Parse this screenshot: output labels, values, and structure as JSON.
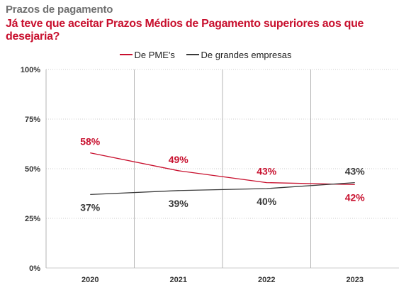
{
  "kicker": "Prazos de pagamento",
  "title": "Já teve que aceitar Prazos Médios de Pagamento superiores aos que desejaria?",
  "colors": {
    "title": "#c8102e",
    "pme": "#c8102e",
    "grandes": "#3a3a3a",
    "grid": "#cccccc",
    "axis_text": "#333333"
  },
  "chart_data": {
    "type": "line",
    "x": [
      "2020",
      "2021",
      "2022",
      "2023"
    ],
    "ylim": [
      0,
      100
    ],
    "y_ticks": [
      "0%",
      "25%",
      "50%",
      "75%",
      "100%"
    ],
    "y_tick_values": [
      0,
      25,
      50,
      75,
      100
    ],
    "grid": true,
    "legend_position": "top-center",
    "series": [
      {
        "name": "De PME's",
        "values": [
          58,
          49,
          43,
          42
        ],
        "labels": [
          "58%",
          "49%",
          "43%",
          "42%"
        ],
        "color": "#c8102e"
      },
      {
        "name": "De grandes empresas",
        "values": [
          37,
          39,
          40,
          43
        ],
        "labels": [
          "37%",
          "39%",
          "40%",
          "43%"
        ],
        "color": "#3a3a3a"
      }
    ]
  }
}
